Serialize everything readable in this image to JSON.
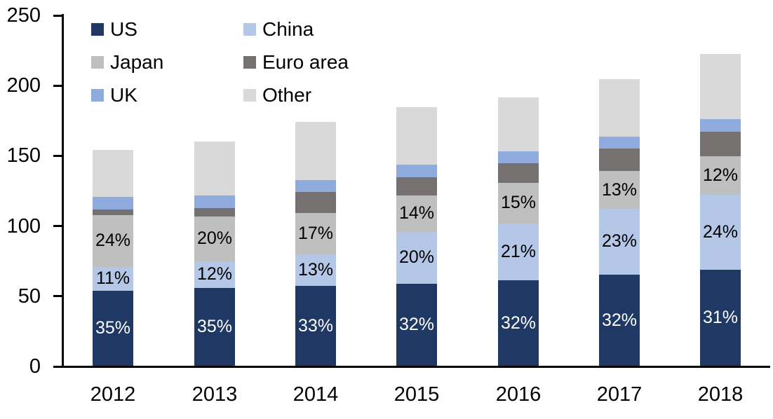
{
  "chart_data": {
    "type": "bar",
    "subtype": "stacked",
    "title": "",
    "xlabel": "",
    "ylabel": "",
    "grid": false,
    "ylim": [
      0,
      250
    ],
    "yticks": [
      "0",
      "50",
      "100",
      "150",
      "200",
      "250"
    ],
    "ytick_values": [
      0,
      50,
      100,
      150,
      200,
      250
    ],
    "categories": [
      "2012",
      "2013",
      "2014",
      "2015",
      "2016",
      "2017",
      "2018"
    ],
    "totals_estimated": [
      154,
      160,
      174,
      184.5,
      191.5,
      204.5,
      222.5
    ],
    "axis_color": "#000000",
    "legend_position": "top-left-inside",
    "legend_order": [
      "US",
      "China",
      "Japan",
      "Euro area",
      "UK",
      "Other"
    ],
    "series": [
      {
        "name": "US",
        "color": "#1F3864",
        "values": [
          54,
          56,
          57.5,
          59,
          61.5,
          65.5,
          69
        ],
        "labels": [
          "35%",
          "35%",
          "33%",
          "32%",
          "32%",
          "32%",
          "31%"
        ],
        "label_color": "#FFFFFF"
      },
      {
        "name": "China",
        "color": "#B4C7E7",
        "values": [
          17,
          19,
          22.5,
          37,
          40.5,
          47,
          53.5
        ],
        "labels": [
          "11%",
          "12%",
          "13%",
          "20%",
          "21%",
          "23%",
          "24%"
        ],
        "label_color": "#000000"
      },
      {
        "name": "Japan",
        "color": "#BFBFBF",
        "values": [
          37,
          32,
          29.5,
          26,
          29,
          26.5,
          27
        ],
        "labels": [
          "24%",
          "20%",
          "17%",
          "14%",
          "15%",
          "13%",
          "12%"
        ],
        "label_color": "#000000"
      },
      {
        "name": "Euro area",
        "color": "#767171",
        "values": [
          4,
          6,
          15,
          12.5,
          13.5,
          16,
          17.5
        ],
        "labels": null,
        "label_color": "#000000"
      },
      {
        "name": "UK",
        "color": "#8FAADC",
        "values": [
          9,
          9,
          8.5,
          9,
          8.5,
          8.5,
          9
        ],
        "labels": null,
        "label_color": "#000000"
      },
      {
        "name": "Other",
        "color": "#D9D9D9",
        "values": [
          33,
          38,
          41,
          41,
          38.5,
          41,
          46.5
        ],
        "labels": null,
        "label_color": "#000000"
      }
    ]
  }
}
